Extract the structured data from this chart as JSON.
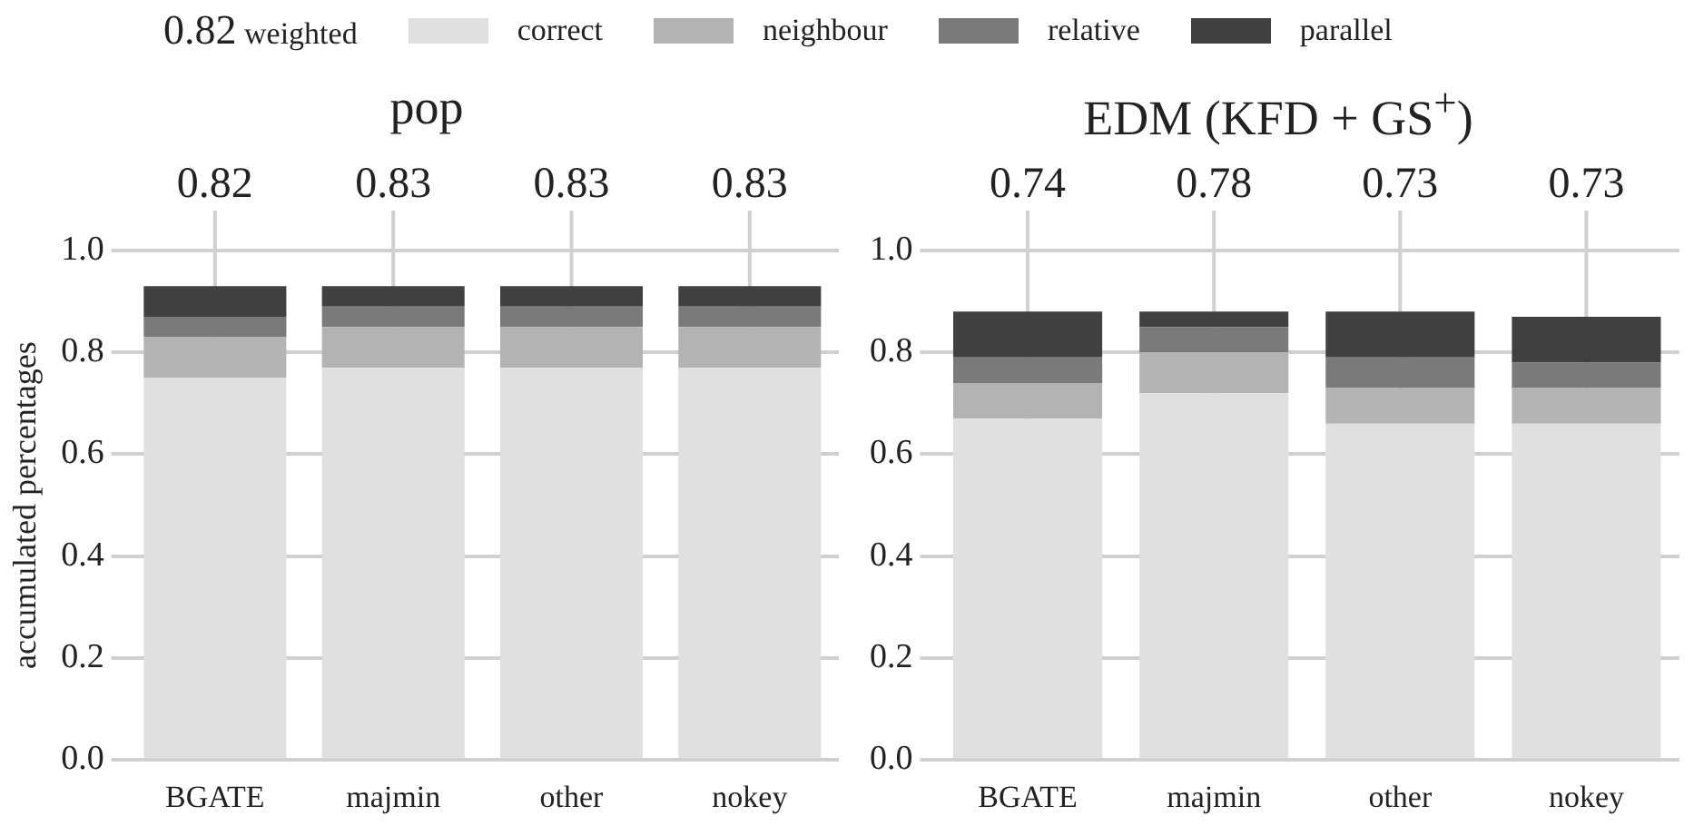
{
  "chart_data": [
    {
      "type": "bar",
      "stacked": true,
      "title": "pop",
      "ylabel": "accumulated percentages",
      "legend": "top",
      "legend_title": "0.82 weighted",
      "grid": true,
      "categories": [
        "BGATE",
        "majmin",
        "other",
        "nokey"
      ],
      "series": [
        {
          "name": "correct",
          "color": "#e0e0e0",
          "values": [
            0.75,
            0.77,
            0.77,
            0.77
          ]
        },
        {
          "name": "neighbour",
          "color": "#b3b3b3",
          "values": [
            0.08,
            0.08,
            0.08,
            0.08
          ]
        },
        {
          "name": "relative",
          "color": "#7a7a7a",
          "values": [
            0.04,
            0.04,
            0.04,
            0.04
          ]
        },
        {
          "name": "parallel",
          "color": "#404040",
          "values": [
            0.06,
            0.04,
            0.04,
            0.04
          ]
        }
      ],
      "ylim": [
        0,
        1
      ],
      "yticks": [
        {
          "value": 0,
          "label": "0.0"
        },
        {
          "value": 0.2,
          "label": "0.2"
        },
        {
          "value": 0.4,
          "label": "0.4"
        },
        {
          "value": 0.6,
          "label": "0.6"
        },
        {
          "value": 0.8,
          "label": "0.8"
        },
        {
          "value": 1,
          "label": "1.0"
        }
      ],
      "annotations": [
        "0.82",
        "0.83",
        "0.83",
        "0.83"
      ]
    },
    {
      "type": "bar",
      "stacked": true,
      "title": "EDM (KFD + GS$^{+}$)",
      "grid": true,
      "categories": [
        "BGATE",
        "majmin",
        "other",
        "nokey"
      ],
      "series": [
        {
          "color": "#e0e0e0",
          "values": [
            0.67,
            0.72,
            0.66,
            0.66
          ]
        },
        {
          "color": "#b3b3b3",
          "values": [
            0.07,
            0.08,
            0.07,
            0.07
          ]
        },
        {
          "color": "#7a7a7a",
          "values": [
            0.05,
            0.05,
            0.06,
            0.05
          ]
        },
        {
          "color": "#404040",
          "values": [
            0.09,
            0.03,
            0.09,
            0.09
          ]
        }
      ],
      "ylim": [
        0,
        1
      ],
      "yticks": [
        {
          "value": 0,
          "label": "0.0"
        },
        {
          "value": 0.2,
          "label": "0.2"
        },
        {
          "value": 0.4,
          "label": "0.4"
        },
        {
          "value": 0.6,
          "label": "0.6"
        },
        {
          "value": 0.8,
          "label": "0.8"
        },
        {
          "value": 1,
          "label": "1.0"
        }
      ],
      "annotations": [
        "0.74",
        "0.78",
        "0.73",
        "0.73"
      ]
    }
  ]
}
